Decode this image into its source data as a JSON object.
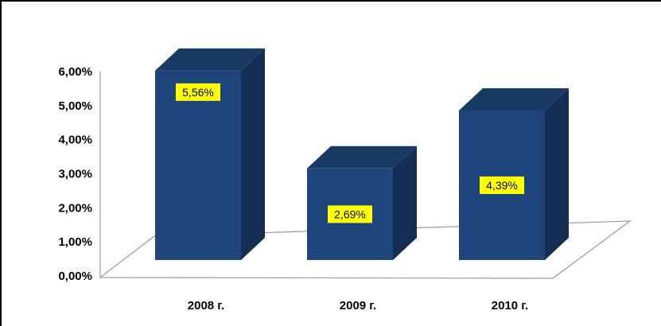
{
  "chart_data": {
    "type": "bar",
    "categories": [
      "2008 г.",
      "2009 г.",
      "2010 г."
    ],
    "values": [
      5.56,
      2.69,
      4.39
    ],
    "data_labels": [
      "5,56%",
      "2,69%",
      "4,39%"
    ],
    "ylim": [
      0,
      6
    ],
    "y_ticks": [
      {
        "value": 0,
        "label": "0,00%"
      },
      {
        "value": 1,
        "label": "1,00%"
      },
      {
        "value": 2,
        "label": "2,00%"
      },
      {
        "value": 3,
        "label": "3,00%"
      },
      {
        "value": 4,
        "label": "4,00%"
      },
      {
        "value": 5,
        "label": "5,00%"
      },
      {
        "value": 6,
        "label": "6,00%"
      }
    ],
    "grid": false,
    "legend": "none",
    "style": "3d-column",
    "colors": {
      "bar_front": "#1f467c",
      "bar_top": "#1a3a66",
      "bar_side": "#152d52",
      "label_bg": "#ffff00",
      "floor_line": "#9a9a9a"
    }
  }
}
